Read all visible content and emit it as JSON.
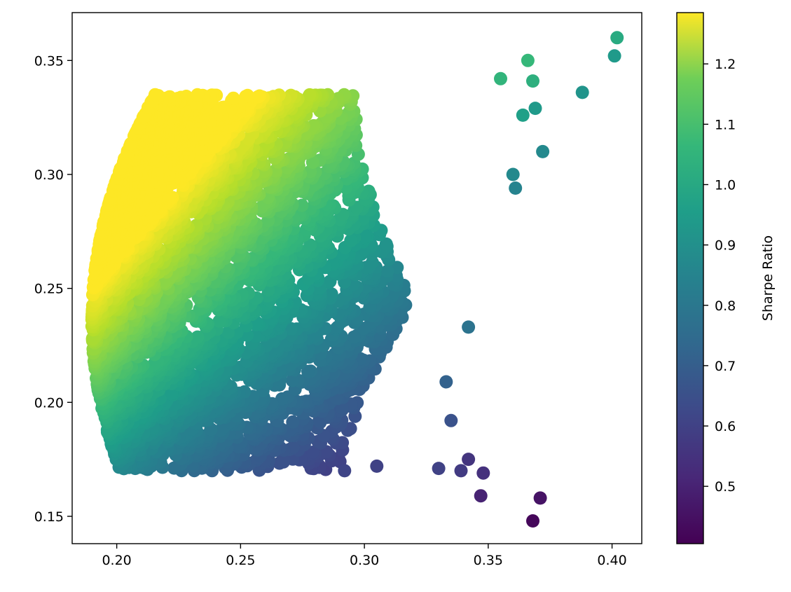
{
  "chart_data": {
    "type": "scatter",
    "title": "",
    "xlabel": "",
    "ylabel": "",
    "xlim": [
      0.182,
      0.412
    ],
    "ylim": [
      0.138,
      0.371
    ],
    "xticks": [
      0.2,
      0.25,
      0.3,
      0.35,
      0.4
    ],
    "xtick_labels": [
      "0.20",
      "0.25",
      "0.30",
      "0.35",
      "0.40"
    ],
    "yticks": [
      0.15,
      0.2,
      0.25,
      0.3,
      0.35
    ],
    "ytick_labels": [
      "0.15",
      "0.20",
      "0.25",
      "0.30",
      "0.35"
    ],
    "grid": false,
    "colormap": "viridis",
    "colorbar": {
      "label": "Sharpe Ratio",
      "range": [
        0.405,
        1.285
      ],
      "ticks": [
        0.5,
        0.6,
        0.7,
        0.8,
        0.9,
        1.0,
        1.1,
        1.2
      ],
      "tick_labels": [
        "0.5",
        "0.6",
        "0.7",
        "0.8",
        "0.9",
        "1.0",
        "1.1",
        "1.2"
      ]
    },
    "highlighted_points": [
      {
        "x": 0.402,
        "y": 0.36,
        "c": 0.94
      },
      {
        "x": 0.401,
        "y": 0.352,
        "c": 0.88
      },
      {
        "x": 0.388,
        "y": 0.336,
        "c": 0.86
      },
      {
        "x": 0.366,
        "y": 0.35,
        "c": 0.99
      },
      {
        "x": 0.368,
        "y": 0.341,
        "c": 0.96
      },
      {
        "x": 0.355,
        "y": 0.342,
        "c": 0.98
      },
      {
        "x": 0.372,
        "y": 0.31,
        "c": 0.82
      },
      {
        "x": 0.369,
        "y": 0.329,
        "c": 0.88
      },
      {
        "x": 0.364,
        "y": 0.326,
        "c": 0.9
      },
      {
        "x": 0.36,
        "y": 0.3,
        "c": 0.82
      },
      {
        "x": 0.361,
        "y": 0.294,
        "c": 0.8
      },
      {
        "x": 0.342,
        "y": 0.233,
        "c": 0.74
      },
      {
        "x": 0.371,
        "y": 0.158,
        "c": 0.45
      },
      {
        "x": 0.368,
        "y": 0.148,
        "c": 0.42
      },
      {
        "x": 0.347,
        "y": 0.159,
        "c": 0.49
      },
      {
        "x": 0.348,
        "y": 0.169,
        "c": 0.53
      },
      {
        "x": 0.342,
        "y": 0.175,
        "c": 0.54
      },
      {
        "x": 0.339,
        "y": 0.17,
        "c": 0.56
      },
      {
        "x": 0.33,
        "y": 0.171,
        "c": 0.58
      },
      {
        "x": 0.292,
        "y": 0.17,
        "c": 0.59
      },
      {
        "x": 0.305,
        "y": 0.172,
        "c": 0.58
      },
      {
        "x": 0.335,
        "y": 0.192,
        "c": 0.63
      },
      {
        "x": 0.333,
        "y": 0.209,
        "c": 0.68
      }
    ],
    "cloud_description_points": "dense cloud of ~5000 simulated portfolios: x (volatility) from 0.19 to 0.34, y (return) from 0.17 to 0.34; color = Sharpe ratio, highest (yellow ~1.28) at left edge near x=0.19, y=0.235"
  },
  "colors": {
    "axis": "#000000",
    "background": "#ffffff"
  }
}
